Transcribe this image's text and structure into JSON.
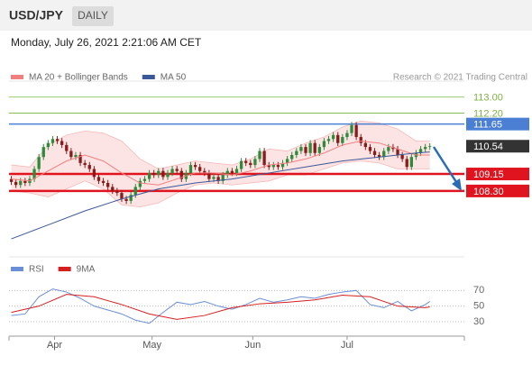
{
  "chart_data": {
    "type": "candlestick",
    "title": "USD/JPY",
    "timeframe": "DAILY",
    "date": "Monday, July 26, 2021 2:21:06 AM CET",
    "credit": "Research © 2021 Trading Central",
    "xlim": [
      -0.5,
      98.5
    ],
    "xticks": [
      {
        "value": 9.4,
        "label": "Apr"
      },
      {
        "value": 30.6,
        "label": "May"
      },
      {
        "value": 52.5,
        "label": "Jun"
      },
      {
        "value": 73,
        "label": "Jul"
      }
    ],
    "ylim": [
      105,
      113.8
    ],
    "up_color": "#2e8b3a",
    "down_color": "#8b1a1a",
    "ohlc": [
      [
        108.9,
        109.05,
        108.6,
        108.75
      ],
      [
        108.75,
        108.9,
        108.45,
        108.6
      ],
      [
        108.6,
        108.95,
        108.45,
        108.8
      ],
      [
        108.8,
        108.95,
        108.55,
        108.7
      ],
      [
        108.7,
        109.05,
        108.55,
        108.9
      ],
      [
        108.9,
        109.55,
        108.75,
        109.4
      ],
      [
        109.4,
        110.15,
        109.25,
        110.0
      ],
      [
        110.0,
        110.65,
        109.85,
        110.5
      ],
      [
        110.5,
        110.85,
        110.35,
        110.7
      ],
      [
        110.7,
        111.05,
        110.55,
        110.9
      ],
      [
        110.9,
        111.05,
        110.65,
        110.8
      ],
      [
        110.8,
        110.95,
        110.45,
        110.6
      ],
      [
        110.6,
        110.75,
        110.15,
        110.3
      ],
      [
        110.3,
        110.45,
        109.85,
        110.0
      ],
      [
        110.0,
        110.25,
        109.85,
        110.1
      ],
      [
        110.1,
        110.25,
        109.55,
        109.7
      ],
      [
        109.7,
        109.85,
        109.45,
        109.6
      ],
      [
        109.6,
        109.75,
        109.25,
        109.4
      ],
      [
        109.4,
        109.55,
        108.85,
        109.0
      ],
      [
        109.0,
        109.15,
        108.65,
        108.8
      ],
      [
        108.8,
        108.95,
        108.55,
        108.7
      ],
      [
        108.7,
        108.85,
        108.35,
        108.5
      ],
      [
        108.5,
        108.65,
        108.15,
        108.3
      ],
      [
        108.3,
        108.45,
        108.05,
        108.2
      ],
      [
        108.2,
        108.35,
        107.75,
        107.9
      ],
      [
        107.9,
        108.05,
        107.65,
        107.8
      ],
      [
        107.8,
        108.25,
        107.65,
        108.1
      ],
      [
        108.1,
        108.65,
        107.95,
        108.5
      ],
      [
        108.5,
        108.95,
        108.35,
        108.8
      ],
      [
        108.8,
        109.05,
        108.65,
        108.9
      ],
      [
        108.9,
        109.35,
        108.75,
        109.2
      ],
      [
        109.2,
        109.35,
        108.95,
        109.1
      ],
      [
        109.1,
        109.45,
        108.95,
        109.3
      ],
      [
        109.3,
        109.45,
        108.85,
        109.0
      ],
      [
        109.0,
        109.35,
        108.85,
        109.2
      ],
      [
        109.2,
        109.55,
        109.05,
        109.4
      ],
      [
        109.4,
        109.55,
        109.15,
        109.3
      ],
      [
        109.3,
        109.45,
        108.75,
        108.9
      ],
      [
        108.9,
        109.35,
        108.75,
        109.2
      ],
      [
        109.2,
        109.75,
        109.05,
        109.6
      ],
      [
        109.6,
        109.75,
        109.35,
        109.5
      ],
      [
        109.5,
        109.65,
        109.15,
        109.3
      ],
      [
        109.3,
        109.45,
        109.05,
        109.2
      ],
      [
        109.2,
        109.35,
        108.75,
        108.9
      ],
      [
        108.9,
        109.15,
        108.75,
        109.0
      ],
      [
        109.0,
        109.15,
        108.65,
        108.8
      ],
      [
        108.8,
        109.25,
        108.65,
        109.1
      ],
      [
        109.1,
        109.45,
        108.95,
        109.3
      ],
      [
        109.3,
        109.45,
        109.05,
        109.2
      ],
      [
        109.2,
        109.55,
        109.05,
        109.4
      ],
      [
        109.4,
        109.95,
        109.25,
        109.8
      ],
      [
        109.8,
        109.95,
        109.55,
        109.7
      ],
      [
        109.7,
        109.85,
        109.45,
        109.6
      ],
      [
        109.6,
        110.05,
        109.45,
        109.9
      ],
      [
        109.9,
        110.45,
        109.75,
        110.3
      ],
      [
        110.3,
        110.45,
        109.45,
        109.6
      ],
      [
        109.6,
        109.75,
        109.35,
        109.5
      ],
      [
        109.5,
        109.75,
        109.35,
        109.6
      ],
      [
        109.6,
        109.75,
        109.35,
        109.5
      ],
      [
        109.5,
        109.85,
        109.35,
        109.7
      ],
      [
        109.7,
        110.05,
        109.55,
        109.9
      ],
      [
        109.9,
        110.25,
        109.75,
        110.1
      ],
      [
        110.1,
        110.45,
        109.95,
        110.3
      ],
      [
        110.3,
        110.65,
        110.15,
        110.5
      ],
      [
        110.5,
        110.65,
        110.05,
        110.2
      ],
      [
        110.2,
        110.85,
        110.05,
        110.7
      ],
      [
        110.7,
        110.85,
        110.05,
        110.2
      ],
      [
        110.2,
        110.65,
        110.05,
        110.5
      ],
      [
        110.5,
        110.95,
        110.35,
        110.8
      ],
      [
        110.8,
        111.05,
        110.65,
        110.9
      ],
      [
        110.9,
        111.25,
        110.75,
        111.1
      ],
      [
        111.1,
        111.25,
        110.55,
        110.7
      ],
      [
        110.7,
        111.15,
        110.55,
        111.0
      ],
      [
        111.0,
        111.35,
        110.85,
        111.2
      ],
      [
        111.2,
        111.75,
        111.05,
        111.6
      ],
      [
        111.6,
        111.75,
        110.85,
        111.0
      ],
      [
        111.0,
        111.15,
        110.55,
        110.7
      ],
      [
        110.7,
        110.85,
        110.35,
        110.5
      ],
      [
        110.5,
        110.65,
        110.15,
        110.3
      ],
      [
        110.3,
        110.45,
        109.95,
        110.1
      ],
      [
        110.1,
        110.25,
        109.85,
        110.0
      ],
      [
        110.0,
        110.45,
        109.85,
        110.3
      ],
      [
        110.3,
        110.65,
        110.15,
        110.5
      ],
      [
        110.5,
        110.65,
        110.25,
        110.4
      ],
      [
        110.4,
        110.55,
        109.95,
        110.1
      ],
      [
        110.1,
        110.25,
        109.75,
        109.9
      ],
      [
        109.9,
        110.05,
        109.35,
        109.5
      ],
      [
        109.5,
        110.15,
        109.35,
        110.0
      ],
      [
        110.0,
        110.35,
        109.85,
        110.2
      ],
      [
        110.2,
        110.55,
        110.05,
        110.4
      ],
      [
        110.4,
        110.65,
        110.25,
        110.5
      ],
      [
        110.5,
        110.69,
        110.35,
        110.54
      ]
    ],
    "series": [
      {
        "name": "MA 20 + Bollinger Bands",
        "color": "#f08080",
        "band_color": "#fde4e4",
        "x": [
          0,
          4,
          8,
          12,
          16,
          20,
          24,
          28,
          32,
          36,
          40,
          44,
          48,
          52,
          56,
          60,
          64,
          68,
          72,
          76,
          80,
          84,
          88,
          91
        ],
        "values": [
          108.9,
          108.8,
          109.3,
          109.8,
          110.1,
          109.8,
          109.2,
          108.7,
          108.6,
          108.9,
          109.2,
          109.2,
          109.1,
          109.3,
          109.6,
          109.7,
          109.9,
          110.2,
          110.6,
          110.8,
          110.7,
          110.4,
          110.1,
          110.1
        ],
        "upper": [
          109.6,
          109.5,
          110.6,
          111.1,
          111.3,
          111.2,
          110.8,
          109.9,
          109.4,
          109.6,
          109.8,
          109.7,
          109.6,
          109.9,
          110.4,
          110.3,
          110.7,
          111.0,
          111.5,
          111.8,
          111.7,
          111.4,
          110.8,
          110.8
        ],
        "lower": [
          108.3,
          108.2,
          108.0,
          108.4,
          108.8,
          108.4,
          107.6,
          107.5,
          107.7,
          108.2,
          108.6,
          108.7,
          108.6,
          108.7,
          108.8,
          109.1,
          109.1,
          109.4,
          109.7,
          109.8,
          109.7,
          109.4,
          109.4,
          109.4
        ]
      },
      {
        "name": "MA 50",
        "color": "#3b5998",
        "x": [
          0,
          8,
          16,
          24,
          32,
          40,
          48,
          56,
          64,
          72,
          80,
          88,
          91
        ],
        "values": [
          105.9,
          106.6,
          107.3,
          107.9,
          108.4,
          108.7,
          108.9,
          109.2,
          109.5,
          109.8,
          110.0,
          110.2,
          110.25
        ]
      }
    ],
    "levels": [
      {
        "value": 113,
        "label": "113.00",
        "color": "#7cb342",
        "line_width": 0.8,
        "boxed": false
      },
      {
        "value": 112.2,
        "label": "112.20",
        "color": "#7cb342",
        "line_width": 0.8,
        "boxed": false
      },
      {
        "value": 111.65,
        "label": "111.65",
        "color": "#4a7fd4",
        "line_width": 1.5,
        "boxed": true
      },
      {
        "value": 110.54,
        "label": "110.54",
        "color": "#333333",
        "line_width": 0,
        "boxed": true
      },
      {
        "value": 109.15,
        "label": "109.15",
        "color": "#e0141e",
        "line_width": 2.5,
        "boxed": true
      },
      {
        "value": 108.3,
        "label": "108.30",
        "color": "#e0141e",
        "line_width": 2.5,
        "boxed": true
      }
    ],
    "rsi": {
      "ylim": [
        15,
        90
      ],
      "yticks": [
        70,
        50,
        30
      ],
      "series": [
        {
          "name": "RSI",
          "color": "#6b8fd6",
          "x": [
            0,
            3,
            6,
            9,
            12,
            15,
            18,
            21,
            24,
            27,
            30,
            33,
            36,
            39,
            42,
            45,
            48,
            51,
            54,
            57,
            60,
            63,
            66,
            69,
            72,
            75,
            78,
            81,
            84,
            87,
            90,
            91
          ],
          "values": [
            38,
            40,
            62,
            72,
            68,
            60,
            50,
            45,
            40,
            32,
            28,
            42,
            55,
            52,
            56,
            50,
            46,
            52,
            60,
            55,
            58,
            62,
            60,
            65,
            68,
            70,
            52,
            48,
            56,
            44,
            52,
            56
          ]
        },
        {
          "name": "9MA",
          "color": "#d62020",
          "x": [
            0,
            6,
            12,
            18,
            24,
            30,
            36,
            42,
            48,
            54,
            60,
            66,
            72,
            78,
            84,
            90,
            91
          ],
          "values": [
            42,
            50,
            65,
            62,
            52,
            40,
            33,
            38,
            48,
            53,
            55,
            58,
            64,
            62,
            50,
            48,
            49
          ]
        }
      ]
    }
  }
}
